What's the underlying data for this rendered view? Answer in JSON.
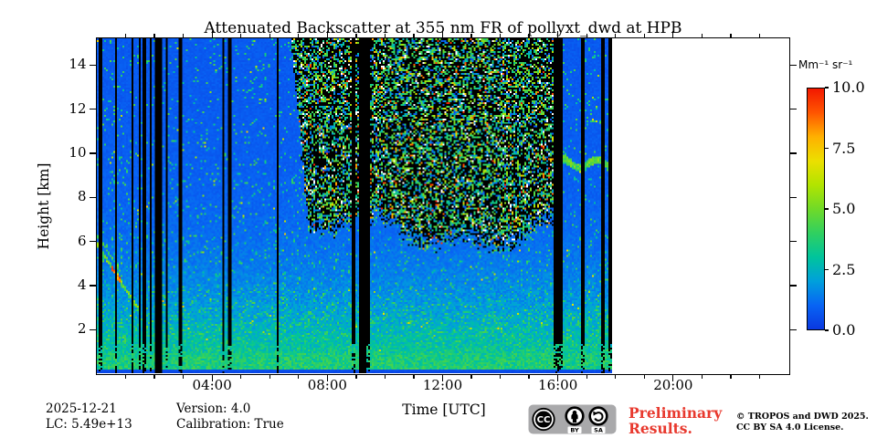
{
  "chart_data": {
    "type": "heatmap",
    "title": "Attenuated Backscatter at 355 nm FR of pollyxt_dwd at HPB",
    "xlabel": "Time [UTC]",
    "ylabel": "Height [km]",
    "grid": false,
    "x_axis": {
      "range_hours": [
        0,
        24
      ],
      "major_ticks": [
        {
          "hour": 4,
          "label": "04:00"
        },
        {
          "hour": 8,
          "label": "08:00"
        },
        {
          "hour": 12,
          "label": "12:00"
        },
        {
          "hour": 16,
          "label": "16:00"
        },
        {
          "hour": 20,
          "label": "20:00"
        }
      ],
      "minor_step_hours": 1
    },
    "y_axis": {
      "range_km": [
        0,
        15.2
      ],
      "major_tick_km": [
        2,
        4,
        6,
        8,
        10,
        12,
        14
      ]
    },
    "colorbar": {
      "unit": "Mm⁻¹ sr⁻¹",
      "min": 0.0,
      "max": 10.0,
      "tick_values": [
        0,
        2.5,
        5,
        7.5,
        10
      ],
      "tick_labels": [
        "0.0",
        "2.5",
        "5.0",
        "7.5",
        "10.0"
      ],
      "colormap": "jet",
      "stops": [
        [
          0.0,
          "#0a38e0"
        ],
        [
          0.1,
          "#0864f4"
        ],
        [
          0.2,
          "#00a0dc"
        ],
        [
          0.3,
          "#00c49c"
        ],
        [
          0.4,
          "#30d060"
        ],
        [
          0.5,
          "#70da28"
        ],
        [
          0.6,
          "#b2e400"
        ],
        [
          0.7,
          "#ecdf00"
        ],
        [
          0.8,
          "#ffb000"
        ],
        [
          0.9,
          "#ff5500"
        ],
        [
          1.0,
          "#f21800"
        ]
      ]
    },
    "data_coverage": {
      "start_hour": 0.0,
      "end_hour": 17.9
    },
    "features": {
      "measurement_gaps_hours": [
        [
          2.02,
          2.28
        ],
        [
          9.07,
          9.33
        ]
      ],
      "dropout_line_hours": [
        0.13,
        0.66,
        1.23,
        1.49,
        1.65,
        1.87,
        2.44,
        2.91,
        4.4,
        4.62,
        6.3,
        8.92,
        9.42,
        15.92,
        16.02,
        16.1,
        16.85,
        17.55,
        17.82
      ],
      "daytime_noise_region": {
        "start_hour": 6.72,
        "end_hour": 15.87,
        "typical_bottom_km": 5.9
      },
      "boundary_layer": {
        "top_km": 0.9,
        "backscatter": 3.6
      },
      "near_range_gap_km": 0.18,
      "falling_aerosol_streak": {
        "start": [
          0.0,
          5.9
        ],
        "end": [
          1.45,
          2.85
        ],
        "slope_km_per_h": -2.1,
        "peak_backscatter": 9.0,
        "red_core_hours": [
          0.5,
          0.82
        ]
      },
      "elevated_aerosol_layer": {
        "start_hour": 15.9,
        "end_hour": 17.9,
        "height_km": 9.5,
        "backscatter": 5.0
      },
      "background_profile": [
        {
          "km": 0.5,
          "v": 3.5
        },
        {
          "km": 2,
          "v": 2.3
        },
        {
          "km": 5,
          "v": 1.3
        },
        {
          "km": 10,
          "v": 0.8
        },
        {
          "km": 15,
          "v": 0.75
        }
      ]
    }
  },
  "footer": {
    "date": "2025-12-21",
    "lc": "LC: 5.49e+13",
    "version": "Version: 4.0",
    "calibration": "Calibration: True",
    "preliminary_line1": "Preliminary",
    "preliminary_line2": "Results.",
    "preliminary_color": "#e8392e",
    "copyright_line1": "© TROPOS and DWD 2025.",
    "copyright_line2": "CC BY SA 4.0 License."
  },
  "license_badge": {
    "cc": "CC",
    "by": "BY",
    "sa": "SA"
  }
}
